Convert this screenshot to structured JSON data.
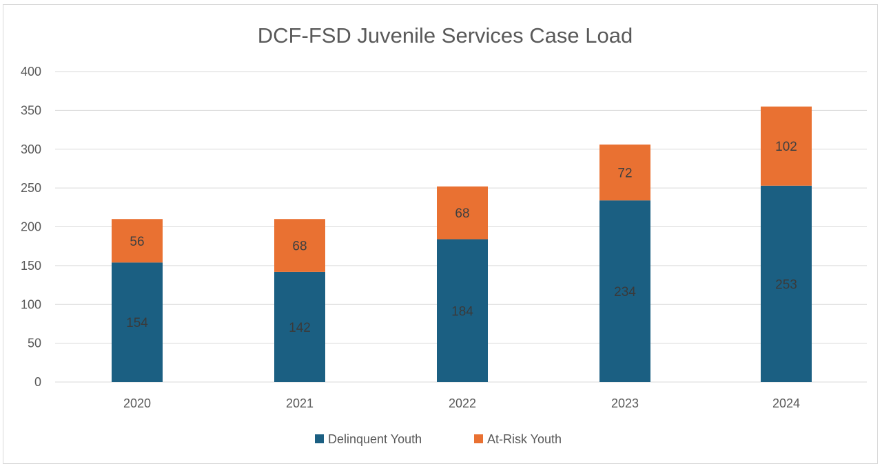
{
  "chart_data": {
    "type": "bar",
    "stacked": true,
    "title": "DCF-FSD Juvenile Services Case Load",
    "categories": [
      "2020",
      "2021",
      "2022",
      "2023",
      "2024"
    ],
    "series": [
      {
        "name": "Delinquent Youth",
        "values": [
          154,
          142,
          184,
          234,
          253
        ],
        "color": "#1b5f82",
        "label_color": "#3a3a3a"
      },
      {
        "name": "At-Risk Youth",
        "values": [
          56,
          68,
          68,
          72,
          102
        ],
        "color": "#e97132",
        "label_color": "#404040"
      }
    ],
    "ylim": [
      0,
      400
    ],
    "yticks": [
      0,
      50,
      100,
      150,
      200,
      250,
      300,
      350,
      400
    ],
    "grid": true,
    "legend_position": "bottom"
  }
}
